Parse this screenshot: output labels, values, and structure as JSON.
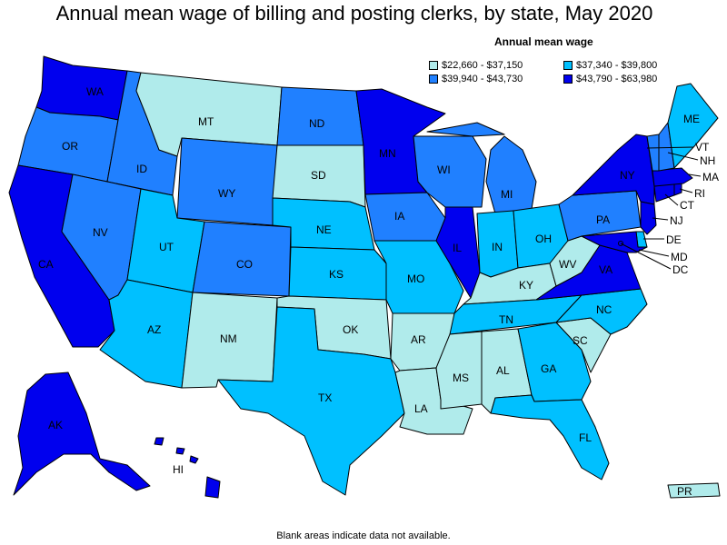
{
  "title": "Annual mean wage of billing and posting clerks, by state, May 2020",
  "legend": {
    "title": "Annual mean wage",
    "items": [
      {
        "label": "$22,660 - $37,150",
        "color": "#b0ebeb"
      },
      {
        "label": "$37,340 - $39,800",
        "color": "#00c0ff"
      },
      {
        "label": "$39,940 - $43,730",
        "color": "#2080ff"
      },
      {
        "label": "$43,790 - $63,980",
        "color": "#0000ee"
      }
    ]
  },
  "footnote": "Blank areas indicate data not available.",
  "states": [
    {
      "code": "WA",
      "label": "WA",
      "tier": 4
    },
    {
      "code": "OR",
      "label": "OR",
      "tier": 3
    },
    {
      "code": "CA",
      "label": "CA",
      "tier": 4
    },
    {
      "code": "ID",
      "label": "ID",
      "tier": 3
    },
    {
      "code": "NV",
      "label": "NV",
      "tier": 3
    },
    {
      "code": "MT",
      "label": "MT",
      "tier": 1
    },
    {
      "code": "WY",
      "label": "WY",
      "tier": 3
    },
    {
      "code": "UT",
      "label": "UT",
      "tier": 2
    },
    {
      "code": "AZ",
      "label": "AZ",
      "tier": 2
    },
    {
      "code": "CO",
      "label": "CO",
      "tier": 3
    },
    {
      "code": "NM",
      "label": "NM",
      "tier": 1
    },
    {
      "code": "ND",
      "label": "ND",
      "tier": 3
    },
    {
      "code": "SD",
      "label": "SD",
      "tier": 1
    },
    {
      "code": "NE",
      "label": "NE",
      "tier": 2
    },
    {
      "code": "KS",
      "label": "KS",
      "tier": 2
    },
    {
      "code": "OK",
      "label": "OK",
      "tier": 1
    },
    {
      "code": "TX",
      "label": "TX",
      "tier": 2
    },
    {
      "code": "MN",
      "label": "MN",
      "tier": 4
    },
    {
      "code": "IA",
      "label": "IA",
      "tier": 3
    },
    {
      "code": "MO",
      "label": "MO",
      "tier": 2
    },
    {
      "code": "AR",
      "label": "AR",
      "tier": 1
    },
    {
      "code": "LA",
      "label": "LA",
      "tier": 1
    },
    {
      "code": "WI",
      "label": "WI",
      "tier": 3
    },
    {
      "code": "IL",
      "label": "IL",
      "tier": 4
    },
    {
      "code": "MI",
      "label": "MI",
      "tier": 3
    },
    {
      "code": "IN",
      "label": "IN",
      "tier": 2
    },
    {
      "code": "OH",
      "label": "OH",
      "tier": 2
    },
    {
      "code": "KY",
      "label": "KY",
      "tier": 1
    },
    {
      "code": "TN",
      "label": "TN",
      "tier": 2
    },
    {
      "code": "MS",
      "label": "MS",
      "tier": 1
    },
    {
      "code": "AL",
      "label": "AL",
      "tier": 1
    },
    {
      "code": "GA",
      "label": "GA",
      "tier": 2
    },
    {
      "code": "FL",
      "label": "FL",
      "tier": 2
    },
    {
      "code": "SC",
      "label": "SC",
      "tier": 1
    },
    {
      "code": "NC",
      "label": "NC",
      "tier": 2
    },
    {
      "code": "VA",
      "label": "VA",
      "tier": 4
    },
    {
      "code": "WV",
      "label": "WV",
      "tier": 1
    },
    {
      "code": "PA",
      "label": "PA",
      "tier": 3
    },
    {
      "code": "NY",
      "label": "NY",
      "tier": 4
    },
    {
      "code": "NJ",
      "label": "NJ",
      "tier": 4
    },
    {
      "code": "DE",
      "label": "DE",
      "tier": 2
    },
    {
      "code": "MD",
      "label": "MD",
      "tier": 4
    },
    {
      "code": "DC",
      "label": "DC",
      "tier": 4
    },
    {
      "code": "CT",
      "label": "CT",
      "tier": 4
    },
    {
      "code": "RI",
      "label": "RI",
      "tier": 4
    },
    {
      "code": "MA",
      "label": "MA",
      "tier": 4
    },
    {
      "code": "VT",
      "label": "VT",
      "tier": 3
    },
    {
      "code": "NH",
      "label": "NH",
      "tier": 3
    },
    {
      "code": "ME",
      "label": "ME",
      "tier": 2
    },
    {
      "code": "AK",
      "label": "AK",
      "tier": 4
    },
    {
      "code": "HI",
      "label": "HI",
      "tier": 4
    },
    {
      "code": "PR",
      "label": "PR",
      "tier": 1
    }
  ]
}
